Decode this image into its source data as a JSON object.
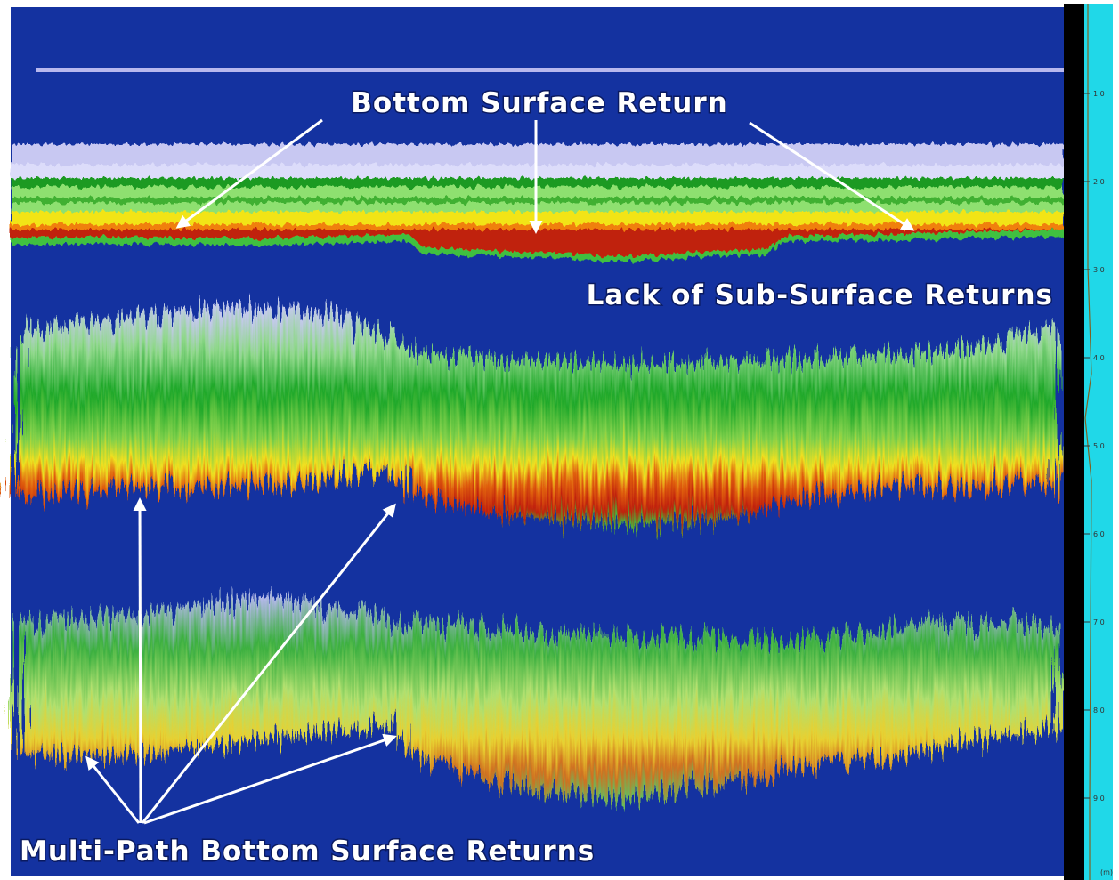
{
  "annotations": {
    "bottom_surface": "Bottom Surface Return",
    "lack_sub_surface": "Lack of Sub-Surface Returns",
    "multi_path": "Multi-Path Bottom Surface Returns"
  },
  "depth_scale": {
    "labels": [
      "1.0",
      "2.0",
      "3.0",
      "4.0",
      "5.0",
      "6.0",
      "7.0",
      "8.0",
      "9.0"
    ],
    "unit": "(m)"
  }
}
